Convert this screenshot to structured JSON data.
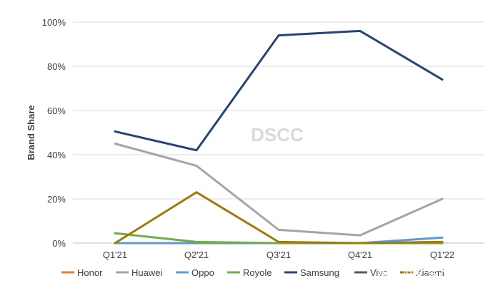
{
  "chart_data": {
    "type": "line",
    "title": "",
    "xlabel": "",
    "ylabel": "Brand Share",
    "categories": [
      "Q1'21",
      "Q2'21",
      "Q3'21",
      "Q4'21",
      "Q1'22"
    ],
    "yticks": [
      "0%",
      "20%",
      "40%",
      "60%",
      "80%",
      "100%"
    ],
    "ylim": [
      0,
      100
    ],
    "grid": "horizontal",
    "legend_position": "bottom",
    "series": [
      {
        "name": "Honor",
        "color": "#ed7d31",
        "values": [
          0,
          0,
          0,
          0,
          0.5
        ]
      },
      {
        "name": "Huawei",
        "color": "#a5a5a5",
        "values": [
          45,
          35,
          6,
          3.5,
          20
        ]
      },
      {
        "name": "Oppo",
        "color": "#5b9bd5",
        "values": [
          0,
          0,
          0,
          0,
          2.5
        ]
      },
      {
        "name": "Royole",
        "color": "#70ad47",
        "values": [
          4.5,
          0.5,
          0,
          0,
          0
        ]
      },
      {
        "name": "Samsung",
        "color": "#264478",
        "values": [
          50.5,
          42,
          94,
          96,
          74
        ]
      },
      {
        "name": "Vivo",
        "color": "#595959",
        "values": [
          0,
          0,
          0,
          0,
          0
        ]
      },
      {
        "name": "Xiaomi",
        "color": "#9e7b0a",
        "values": [
          0,
          23,
          0.5,
          0,
          0.5
        ]
      }
    ],
    "watermark": "DSCC"
  },
  "overlay": {
    "watermark_text": "知乎 @机智万象"
  }
}
